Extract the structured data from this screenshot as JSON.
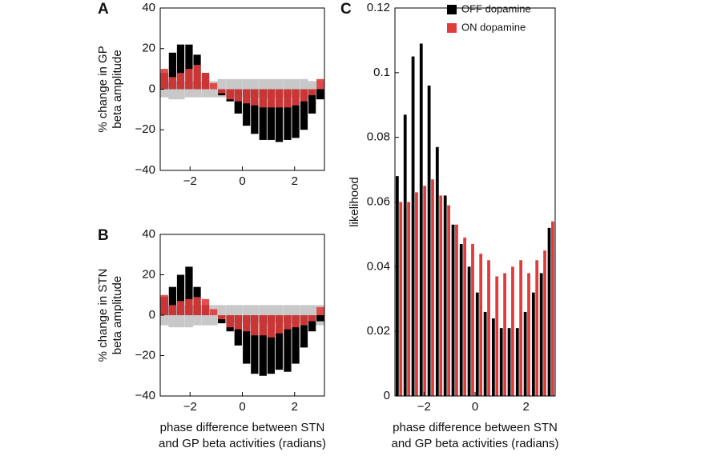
{
  "chart_data": [
    {
      "type": "bar",
      "barmode": "overlay",
      "panel_label": "A",
      "ylabel": [
        "% change in GP",
        "beta amplitude"
      ],
      "x": [
        -2.98,
        -2.67,
        -2.36,
        -2.04,
        -1.73,
        -1.41,
        -1.1,
        -0.79,
        -0.47,
        -0.16,
        0.16,
        0.47,
        0.79,
        1.1,
        1.41,
        1.73,
        2.04,
        2.36,
        2.67,
        2.98
      ],
      "xlim": [
        -3.14159,
        3.14159
      ],
      "xticks": [
        {
          "value": -2,
          "label": "−2"
        },
        0,
        2
      ],
      "ylim": [
        -40,
        40
      ],
      "yticks": [
        {
          "value": -40,
          "label": "−40"
        },
        {
          "value": -20,
          "label": "−20"
        },
        0,
        20,
        40
      ],
      "band": {
        "color": "#c8c8c8",
        "upper": [
          4,
          4,
          4,
          4,
          4,
          4,
          4,
          5,
          5,
          5,
          5,
          5,
          5,
          5,
          5,
          5,
          5,
          5,
          4,
          4
        ],
        "lower": [
          -4,
          -5,
          -5,
          -4,
          -4,
          -4,
          -4,
          -4,
          -4,
          -4,
          -4,
          -4,
          -4,
          -4,
          -4,
          -4,
          -4,
          -4,
          -5,
          -4
        ]
      },
      "series": [
        {
          "name": "OFF dopamine",
          "color": "#000000",
          "values": [
            8,
            18,
            22,
            22,
            17,
            8,
            0,
            -3,
            -6,
            -12,
            -18,
            -22,
            -25,
            -25,
            -26,
            -25,
            -24,
            -20,
            -12,
            -5
          ]
        },
        {
          "name": "ON dopamine",
          "color": "#e03c3c",
          "values": [
            10,
            6,
            8,
            10,
            12,
            8,
            3,
            -2,
            -5,
            -6,
            -7,
            -8,
            -9,
            -9,
            -9,
            -9,
            -8,
            -6,
            -3,
            5
          ]
        }
      ]
    },
    {
      "type": "bar",
      "barmode": "overlay",
      "panel_label": "B",
      "ylabel": [
        "% change in STN",
        "beta amplitude"
      ],
      "xlabel": [
        "phase difference between STN",
        "and GP beta activities (radians)"
      ],
      "x": [
        -2.98,
        -2.67,
        -2.36,
        -2.04,
        -1.73,
        -1.41,
        -1.1,
        -0.79,
        -0.47,
        -0.16,
        0.16,
        0.47,
        0.79,
        1.1,
        1.41,
        1.73,
        2.04,
        2.36,
        2.67,
        2.98
      ],
      "xlim": [
        -3.14159,
        3.14159
      ],
      "xticks": [
        {
          "value": -2,
          "label": "−2"
        },
        0,
        2
      ],
      "ylim": [
        -40,
        40
      ],
      "yticks": [
        {
          "value": -40,
          "label": "−40"
        },
        {
          "value": -20,
          "label": "−20"
        },
        0,
        20,
        40
      ],
      "band": {
        "color": "#c8c8c8",
        "upper": [
          5,
          5,
          5,
          5,
          5,
          5,
          5,
          5,
          5,
          5,
          5,
          5,
          5,
          5,
          5,
          5,
          5,
          5,
          5,
          5
        ],
        "lower": [
          -5,
          -6,
          -6,
          -6,
          -5,
          -5,
          -5,
          -4,
          -4,
          -4,
          -4,
          -4,
          -4,
          -4,
          -4,
          -4,
          -4,
          -4,
          -5,
          -5
        ]
      },
      "series": [
        {
          "name": "OFF dopamine",
          "color": "#000000",
          "values": [
            9,
            14,
            20,
            24,
            14,
            5,
            0,
            -4,
            -8,
            -15,
            -24,
            -29,
            -30,
            -29,
            -27,
            -28,
            -24,
            -16,
            -8,
            -3
          ]
        },
        {
          "name": "ON dopamine",
          "color": "#e03c3c",
          "values": [
            10,
            5,
            7,
            8,
            9,
            8,
            3,
            -2,
            -6,
            -7,
            -8,
            -10,
            -10,
            -11,
            -9,
            -7,
            -6,
            -5,
            -3,
            4
          ]
        }
      ]
    },
    {
      "type": "bar",
      "barmode": "grouped",
      "panel_label": "C",
      "ylabel": [
        "likelihood"
      ],
      "xlabel": [
        "phase difference between STN",
        "and GP beta activities (radians)"
      ],
      "legend": "top right",
      "x": [
        -2.98,
        -2.67,
        -2.36,
        -2.04,
        -1.73,
        -1.41,
        -1.1,
        -0.79,
        -0.47,
        -0.16,
        0.16,
        0.47,
        0.79,
        1.1,
        1.41,
        1.73,
        2.04,
        2.36,
        2.67,
        2.98
      ],
      "xlim": [
        -3.14159,
        3.14159
      ],
      "xticks": [
        {
          "value": -2,
          "label": "−2"
        },
        0,
        2
      ],
      "ylim": [
        0,
        0.12
      ],
      "yticks": [
        0,
        0.02,
        0.04,
        0.06,
        0.08,
        0.1,
        0.12
      ],
      "series": [
        {
          "name": "OFF dopamine",
          "color": "#000000",
          "values": [
            0.068,
            0.087,
            0.105,
            0.109,
            0.096,
            0.077,
            0.062,
            0.053,
            0.047,
            0.04,
            0.032,
            0.026,
            0.024,
            0.021,
            0.021,
            0.021,
            0.026,
            0.032,
            0.038,
            0.052
          ]
        },
        {
          "name": "ON dopamine",
          "color": "#e03c3c",
          "values": [
            0.06,
            0.06,
            0.063,
            0.065,
            0.067,
            0.062,
            0.059,
            0.053,
            0.049,
            0.047,
            0.044,
            0.042,
            0.037,
            0.038,
            0.04,
            0.042,
            0.038,
            0.042,
            0.045,
            0.054
          ]
        }
      ]
    }
  ]
}
